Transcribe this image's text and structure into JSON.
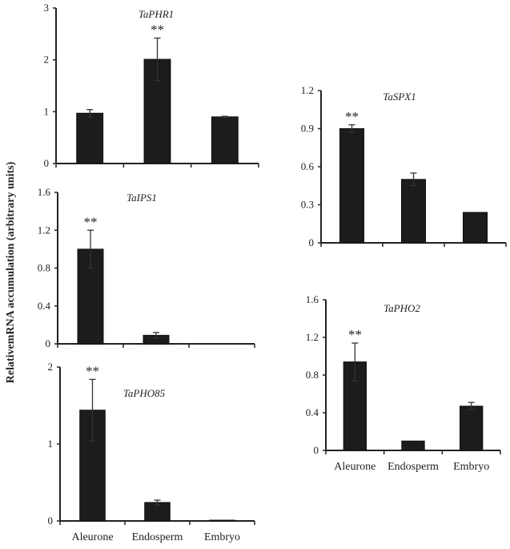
{
  "chart_data": {
    "ylabel": "RelativemRNA accumulation (arbitrary units)",
    "panels": [
      {
        "type": "bar",
        "title": "TaPHR1",
        "categories": [
          "Aleurone",
          "Endosperm",
          "Embryo"
        ],
        "values": [
          0.97,
          2.01,
          0.9
        ],
        "errors": [
          0.07,
          0.41,
          0.01
        ],
        "significance": [
          "",
          "**",
          ""
        ],
        "ylim": [
          0,
          3
        ],
        "yticks": [
          "0",
          "1",
          "2",
          "3"
        ],
        "show_category_labels": false,
        "color": "#1c1c1c"
      },
      {
        "type": "bar",
        "title": "TaIPS1",
        "categories": [
          "Aleurone",
          "Endosperm",
          "Embryo"
        ],
        "values": [
          1.0,
          0.09,
          0
        ],
        "errors": [
          0.2,
          0.03,
          0
        ],
        "significance": [
          "**",
          "",
          ""
        ],
        "ylim": [
          0,
          1.6
        ],
        "yticks": [
          "0",
          "0.4",
          "0.8",
          "1.2",
          "1.6"
        ],
        "show_category_labels": false,
        "color": "#1c1c1c"
      },
      {
        "type": "bar",
        "title": "TaPHO85",
        "categories": [
          "Aleurone",
          "Endosperm",
          "Embryo"
        ],
        "values": [
          1.44,
          0.24,
          0.01
        ],
        "errors": [
          0.4,
          0.03,
          0
        ],
        "significance": [
          "**",
          "",
          ""
        ],
        "ylim": [
          0,
          2
        ],
        "yticks": [
          "0",
          "1",
          "2"
        ],
        "show_category_labels": true,
        "color": "#1c1c1c"
      },
      {
        "type": "bar",
        "title": "TaSPX1",
        "categories": [
          "Aleurone",
          "Endosperm",
          "Embryo"
        ],
        "values": [
          0.9,
          0.5,
          0.24
        ],
        "errors": [
          0.03,
          0.05,
          0
        ],
        "significance": [
          "**",
          "",
          ""
        ],
        "ylim": [
          0,
          1.2
        ],
        "yticks": [
          "0",
          "0.3",
          "0.6",
          "0.9",
          "1.2"
        ],
        "show_category_labels": false,
        "color": "#1c1c1c"
      },
      {
        "type": "bar",
        "title": "TaPHO2",
        "categories": [
          "Aleurone",
          "Endosperm",
          "Embryo"
        ],
        "values": [
          0.94,
          0.1,
          0.47
        ],
        "errors": [
          0.2,
          0,
          0.04
        ],
        "significance": [
          "**",
          "",
          ""
        ],
        "ylim": [
          0,
          1.6
        ],
        "yticks": [
          "0",
          "0.4",
          "0.8",
          "1.2",
          "1.6"
        ],
        "show_category_labels": true,
        "color": "#1c1c1c"
      }
    ]
  }
}
